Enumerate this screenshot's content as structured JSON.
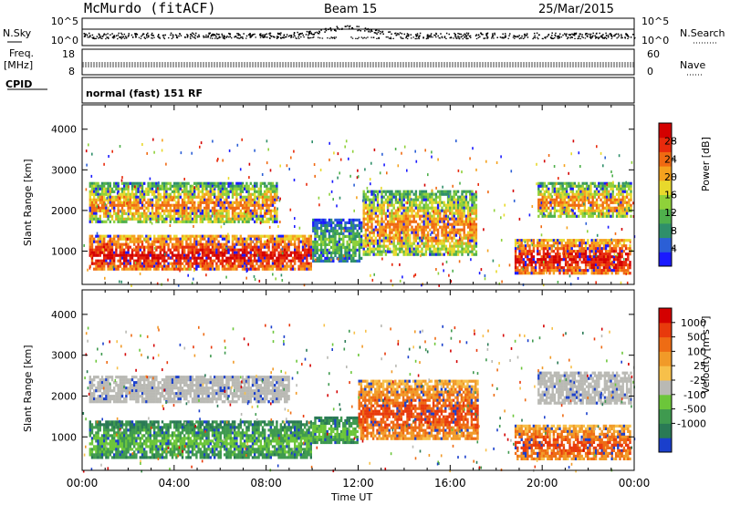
{
  "header": {
    "station": "McMurdo (fitACF)",
    "beam": "Beam 15",
    "date": "25/Mar/2015"
  },
  "side_labels": {
    "nsky": "N.Sky",
    "freq": "Freq.",
    "mhz": "[MHz]",
    "cpid": "CPID",
    "nsearch": "N.Search",
    "nave": "Nave"
  },
  "mode_text": "normal (fast) 151 RF",
  "time_axis_label": "Time UT",
  "range_axis_label": "Slant Range [km]",
  "power_bar_label": "Power [dB]",
  "velocity_bar_label": "Velocity [m s⁻¹]",
  "chart_data": [
    {
      "type": "line",
      "panel": "noise",
      "y_ticks": [
        "10^5",
        "10^0"
      ],
      "right_ticks": [
        "10^5",
        "10^0"
      ]
    },
    {
      "type": "line",
      "panel": "frequency / nave",
      "y_ticks": [
        "18",
        "8"
      ],
      "right_ticks": [
        "60",
        "0"
      ]
    },
    {
      "type": "heatmap",
      "panel": "power",
      "xlabel": "Time UT",
      "ylabel": "Slant Range [km]",
      "x_ticks": [
        "00:00",
        "04:00",
        "08:00",
        "12:00",
        "16:00",
        "20:00",
        "00:00"
      ],
      "y_ticks": [
        1000,
        2000,
        3000,
        4000
      ],
      "ylim": [
        180,
        4600
      ],
      "colorbar": {
        "label": "Power [dB]",
        "ticks": [
          4,
          8,
          12,
          16,
          20,
          24,
          28
        ],
        "range": [
          0,
          32
        ],
        "colors": [
          "#1a1aff",
          "#2b5fd6",
          "#2f8f6a",
          "#4fb04c",
          "#8fd13a",
          "#e8d92c",
          "#f5a21e",
          "#f06a12",
          "#e82a0c",
          "#d40000"
        ]
      },
      "blobs": [
        {
          "t0": 0.3,
          "t1": 10.0,
          "r0": 500,
          "r1": 1400,
          "level": "high"
        },
        {
          "t0": 10.0,
          "t1": 12.2,
          "r0": 700,
          "r1": 1800,
          "level": "low"
        },
        {
          "t0": 12.2,
          "t1": 17.2,
          "r0": 900,
          "r1": 2500,
          "level": "mid"
        },
        {
          "t0": 18.8,
          "t1": 23.9,
          "r0": 450,
          "r1": 1300,
          "level": "high"
        },
        {
          "t0": 0.3,
          "t1": 8.5,
          "r0": 1700,
          "r1": 2700,
          "level": "mid"
        },
        {
          "t0": 19.8,
          "t1": 23.9,
          "r0": 1800,
          "r1": 2700,
          "level": "mid"
        }
      ]
    },
    {
      "type": "heatmap",
      "panel": "velocity",
      "xlabel": "Time UT",
      "ylabel": "Slant Range [km]",
      "x_ticks": [
        "00:00",
        "04:00",
        "08:00",
        "12:00",
        "16:00",
        "20:00",
        "00:00"
      ],
      "y_ticks": [
        1000,
        2000,
        3000,
        4000
      ],
      "ylim": [
        180,
        4600
      ],
      "colorbar": {
        "label": "Velocity [m s⁻¹]",
        "ticks": [
          1000,
          500,
          100,
          25,
          -25,
          -100,
          -500,
          -1000
        ],
        "colors": [
          "#1a3fcc",
          "#2a7a55",
          "#3f9a4f",
          "#6cc63a",
          "#b9b9b4",
          "#f7c04a",
          "#f19a28",
          "#ee6c14",
          "#e83a0c",
          "#d40000"
        ]
      },
      "blobs": [
        {
          "t0": 0.3,
          "t1": 10.0,
          "r0": 450,
          "r1": 1400,
          "level": "green"
        },
        {
          "t0": 10.0,
          "t1": 12.0,
          "r0": 800,
          "r1": 1500,
          "level": "green"
        },
        {
          "t0": 12.0,
          "t1": 17.2,
          "r0": 900,
          "r1": 2400,
          "level": "orange"
        },
        {
          "t0": 18.8,
          "t1": 23.9,
          "r0": 450,
          "r1": 1300,
          "level": "orange"
        },
        {
          "t0": 0.3,
          "t1": 9.0,
          "r0": 1800,
          "r1": 2500,
          "level": "grey"
        },
        {
          "t0": 19.8,
          "t1": 23.9,
          "r0": 1800,
          "r1": 2600,
          "level": "grey"
        }
      ]
    }
  ]
}
